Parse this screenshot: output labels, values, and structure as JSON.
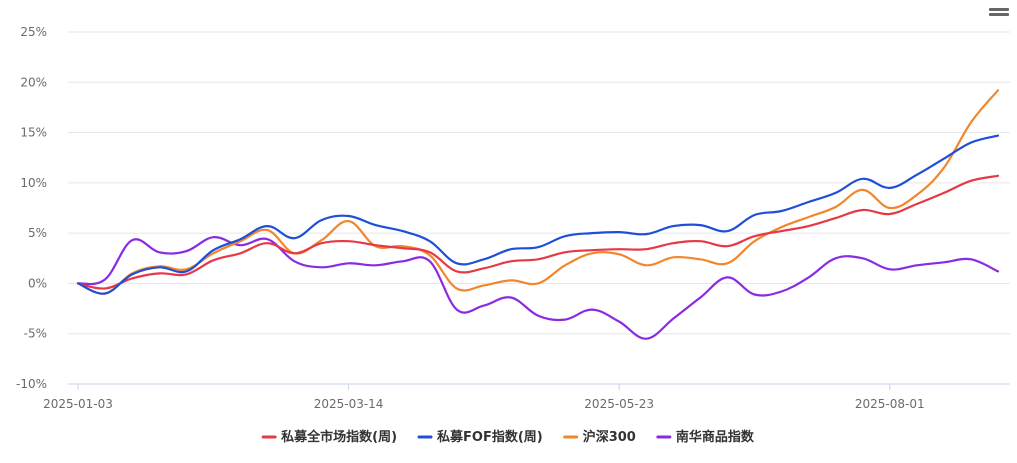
{
  "chart_data": {
    "type": "line",
    "title": "",
    "xlabel": "",
    "ylabel": "",
    "ylim": [
      -10,
      25
    ],
    "y_ticks": [
      "25%",
      "20%",
      "15%",
      "10%",
      "5%",
      "0%",
      "-5%",
      "-10%"
    ],
    "y_tick_values": [
      25,
      20,
      15,
      10,
      5,
      0,
      -5,
      -10
    ],
    "x_ticks": [
      "2025-01-03",
      "2025-03-14",
      "2025-05-23",
      "2025-08-01"
    ],
    "x_tick_index": [
      0,
      10,
      20,
      30
    ],
    "grid": "horizontal",
    "legend_position": "bottom",
    "series": [
      {
        "name": "私募全市场指数(周)",
        "color": "#e63946",
        "values": [
          0,
          -0.5,
          0.5,
          1.0,
          0.9,
          2.3,
          3.0,
          4.0,
          3.0,
          4.0,
          4.2,
          3.8,
          3.5,
          3.1,
          1.2,
          1.5,
          2.2,
          2.4,
          3.1,
          3.3,
          3.4,
          3.4,
          4.0,
          4.2,
          3.7,
          4.7,
          5.2,
          5.7,
          6.5,
          7.3,
          6.9,
          7.9,
          9.0,
          10.2,
          10.7
        ]
      },
      {
        "name": "私募FOF指数(周)",
        "color": "#1f4fd8",
        "values": [
          0,
          -1.0,
          0.9,
          1.6,
          1.2,
          3.3,
          4.4,
          5.7,
          4.5,
          6.3,
          6.7,
          5.8,
          5.2,
          4.2,
          2.0,
          2.4,
          3.4,
          3.6,
          4.7,
          5.0,
          5.1,
          4.9,
          5.7,
          5.8,
          5.2,
          6.8,
          7.2,
          8.1,
          9.0,
          10.4,
          9.5,
          10.8,
          12.4,
          14.0,
          14.7
        ]
      },
      {
        "name": "沪深300",
        "color": "#f3862b",
        "values": [
          0,
          -1.0,
          1.0,
          1.7,
          1.4,
          3.0,
          4.2,
          5.3,
          3.0,
          4.3,
          6.2,
          3.7,
          3.7,
          2.8,
          -0.5,
          -0.2,
          0.3,
          0.0,
          1.8,
          3.0,
          2.9,
          1.8,
          2.6,
          2.4,
          2.0,
          4.2,
          5.6,
          6.6,
          7.6,
          9.3,
          7.5,
          8.8,
          11.5,
          16.0,
          19.2
        ]
      },
      {
        "name": "南华商品指数",
        "color": "#8a2be2",
        "values": [
          0,
          0.4,
          4.3,
          3.1,
          3.2,
          4.6,
          3.8,
          4.4,
          2.2,
          1.6,
          2.0,
          1.8,
          2.2,
          2.2,
          -2.6,
          -2.2,
          -1.4,
          -3.2,
          -3.6,
          -2.6,
          -3.8,
          -5.5,
          -3.5,
          -1.4,
          0.6,
          -1.1,
          -0.8,
          0.6,
          2.5,
          2.5,
          1.4,
          1.8,
          2.1,
          2.4,
          1.2
        ]
      }
    ]
  }
}
